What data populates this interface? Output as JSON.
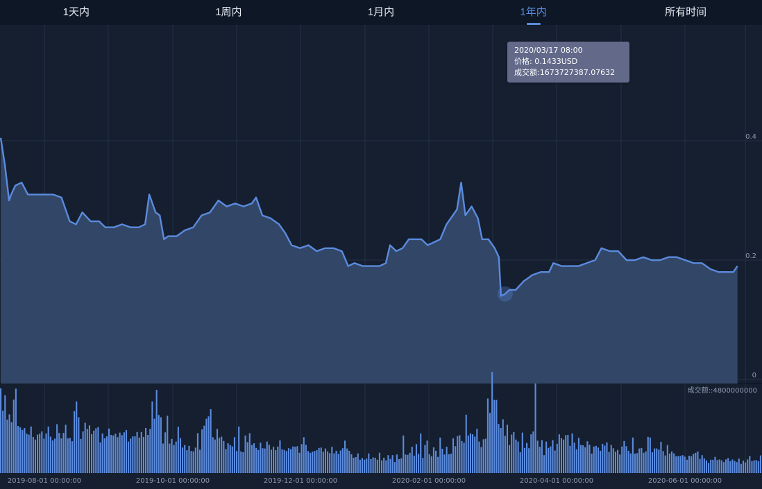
{
  "tabs": [
    {
      "label": "1天内",
      "active": false
    },
    {
      "label": "1周内",
      "active": false
    },
    {
      "label": "1月内",
      "active": false
    },
    {
      "label": "1年内",
      "active": true
    },
    {
      "label": "所有时间",
      "active": false
    }
  ],
  "tooltip": {
    "time": "2020/03/17 08:00",
    "price": "价格: 0.1433USD",
    "volume": "成交额:1673727387.07632"
  },
  "colors": {
    "background": "#151f2f",
    "tab_bar": "#0d1726",
    "accent": "#5b8bde",
    "line": "#5b8bde",
    "area": "#34496a",
    "grid": "#243247",
    "axis_text": "#8d9ab0"
  },
  "chart_data": [
    {
      "type": "area",
      "title": "",
      "ylim": [
        0,
        0.5
      ],
      "y_ticks": [
        "0",
        "0.2",
        "0.4"
      ],
      "grid": true,
      "highlight": {
        "x": "2020-03-17",
        "y": 0.1433
      },
      "points": [
        [
          "2019-07-20",
          0.405
        ],
        [
          "2019-07-22",
          0.36
        ],
        [
          "2019-07-24",
          0.3
        ],
        [
          "2019-07-25",
          0.31
        ],
        [
          "2019-07-27",
          0.325
        ],
        [
          "2019-07-30",
          0.33
        ],
        [
          "2019-08-02",
          0.31
        ],
        [
          "2019-08-06",
          0.31
        ],
        [
          "2019-08-10",
          0.31
        ],
        [
          "2019-08-14",
          0.31
        ],
        [
          "2019-08-18",
          0.305
        ],
        [
          "2019-08-22",
          0.265
        ],
        [
          "2019-08-25",
          0.26
        ],
        [
          "2019-08-28",
          0.28
        ],
        [
          "2019-09-01",
          0.265
        ],
        [
          "2019-09-05",
          0.265
        ],
        [
          "2019-09-08",
          0.255
        ],
        [
          "2019-09-12",
          0.255
        ],
        [
          "2019-09-16",
          0.26
        ],
        [
          "2019-09-20",
          0.255
        ],
        [
          "2019-09-24",
          0.255
        ],
        [
          "2019-09-27",
          0.26
        ],
        [
          "2019-09-29",
          0.31
        ],
        [
          "2019-10-02",
          0.28
        ],
        [
          "2019-10-04",
          0.275
        ],
        [
          "2019-10-06",
          0.235
        ],
        [
          "2019-10-08",
          0.24
        ],
        [
          "2019-10-12",
          0.24
        ],
        [
          "2019-10-16",
          0.25
        ],
        [
          "2019-10-20",
          0.255
        ],
        [
          "2019-10-24",
          0.275
        ],
        [
          "2019-10-28",
          0.28
        ],
        [
          "2019-11-01",
          0.3
        ],
        [
          "2019-11-05",
          0.29
        ],
        [
          "2019-11-09",
          0.295
        ],
        [
          "2019-11-13",
          0.29
        ],
        [
          "2019-11-17",
          0.295
        ],
        [
          "2019-11-19",
          0.305
        ],
        [
          "2019-11-22",
          0.275
        ],
        [
          "2019-11-26",
          0.27
        ],
        [
          "2019-11-30",
          0.26
        ],
        [
          "2019-12-03",
          0.245
        ],
        [
          "2019-12-06",
          0.225
        ],
        [
          "2019-12-10",
          0.22
        ],
        [
          "2019-12-14",
          0.225
        ],
        [
          "2019-12-18",
          0.215
        ],
        [
          "2019-12-22",
          0.22
        ],
        [
          "2019-12-26",
          0.22
        ],
        [
          "2019-12-30",
          0.215
        ],
        [
          "2020-01-02",
          0.19
        ],
        [
          "2020-01-05",
          0.195
        ],
        [
          "2020-01-09",
          0.19
        ],
        [
          "2020-01-13",
          0.19
        ],
        [
          "2020-01-17",
          0.19
        ],
        [
          "2020-01-20",
          0.195
        ],
        [
          "2020-01-22",
          0.225
        ],
        [
          "2020-01-25",
          0.215
        ],
        [
          "2020-01-28",
          0.22
        ],
        [
          "2020-01-31",
          0.235
        ],
        [
          "2020-02-03",
          0.235
        ],
        [
          "2020-02-06",
          0.235
        ],
        [
          "2020-02-09",
          0.225
        ],
        [
          "2020-02-12",
          0.23
        ],
        [
          "2020-02-15",
          0.235
        ],
        [
          "2020-02-18",
          0.26
        ],
        [
          "2020-02-21",
          0.275
        ],
        [
          "2020-02-23",
          0.285
        ],
        [
          "2020-02-25",
          0.33
        ],
        [
          "2020-02-27",
          0.275
        ],
        [
          "2020-03-01",
          0.29
        ],
        [
          "2020-03-04",
          0.27
        ],
        [
          "2020-03-06",
          0.235
        ],
        [
          "2020-03-09",
          0.235
        ],
        [
          "2020-03-12",
          0.22
        ],
        [
          "2020-03-14",
          0.205
        ],
        [
          "2020-03-15",
          0.14
        ],
        [
          "2020-03-17",
          0.1433
        ],
        [
          "2020-03-19",
          0.15
        ],
        [
          "2020-03-22",
          0.15
        ],
        [
          "2020-03-26",
          0.165
        ],
        [
          "2020-03-30",
          0.175
        ],
        [
          "2020-04-03",
          0.18
        ],
        [
          "2020-04-07",
          0.18
        ],
        [
          "2020-04-09",
          0.195
        ],
        [
          "2020-04-13",
          0.19
        ],
        [
          "2020-04-17",
          0.19
        ],
        [
          "2020-04-21",
          0.19
        ],
        [
          "2020-04-25",
          0.195
        ],
        [
          "2020-04-29",
          0.2
        ],
        [
          "2020-05-02",
          0.22
        ],
        [
          "2020-05-06",
          0.215
        ],
        [
          "2020-05-10",
          0.215
        ],
        [
          "2020-05-14",
          0.2
        ],
        [
          "2020-05-18",
          0.2
        ],
        [
          "2020-05-22",
          0.205
        ],
        [
          "2020-05-26",
          0.2
        ],
        [
          "2020-05-30",
          0.2
        ],
        [
          "2020-06-03",
          0.205
        ],
        [
          "2020-06-07",
          0.205
        ],
        [
          "2020-06-11",
          0.2
        ],
        [
          "2020-06-15",
          0.195
        ],
        [
          "2020-06-19",
          0.195
        ],
        [
          "2020-06-23",
          0.185
        ],
        [
          "2020-06-27",
          0.18
        ],
        [
          "2020-07-01",
          0.18
        ],
        [
          "2020-07-04",
          0.18
        ],
        [
          "2020-07-06",
          0.19
        ]
      ]
    },
    {
      "type": "bar",
      "title": "成交额::4800000000",
      "ylim": [
        0,
        4800000000
      ],
      "x_labels": [
        "2019-08-01 00:00:00",
        "2019-10-01 00:00:00",
        "2019-12-01 00:00:00",
        "2020-02-01 00:00:00",
        "2020-04-01 00:00:00",
        "2020-06-01 00:00:00"
      ],
      "values": [
        2930000000,
        2160000000,
        2690000000,
        1850000000,
        2030000000,
        1760000000,
        2540000000,
        2920000000,
        1630000000,
        1580000000,
        1490000000,
        1560000000,
        1360000000,
        1330000000,
        1610000000,
        1250000000,
        1160000000,
        1330000000,
        1360000000,
        1440000000,
        1190000000,
        1370000000,
        1610000000,
        1260000000,
        1130000000,
        1190000000,
        1690000000,
        1390000000,
        1200000000,
        1390000000,
        1670000000,
        1200000000,
        1220000000,
        1100000000,
        2140000000,
        2480000000,
        1930000000,
        1180000000,
        1440000000,
        1740000000,
        1530000000,
        1650000000,
        1350000000,
        1470000000,
        1550000000,
        1590000000,
        1060000000,
        1370000000,
        1200000000,
        1270000000,
        1540000000,
        1320000000,
        1300000000,
        1360000000,
        1240000000,
        1400000000,
        1310000000,
        1410000000,
        1490000000,
        1090000000,
        1190000000,
        1270000000,
        1270000000,
        1420000000,
        1230000000,
        1420000000,
        1250000000,
        1560000000,
        1320000000,
        1530000000,
        2480000000,
        1880000000,
        2880000000,
        2010000000,
        1930000000,
        1020000000,
        1410000000,
        1980000000,
        1020000000,
        1180000000,
        970000000,
        1090000000,
        1600000000,
        1210000000,
        880000000,
        970000000,
        790000000,
        940000000,
        760000000,
        750000000,
        880000000,
        1380000000,
        810000000,
        1510000000,
        1640000000,
        1880000000,
        1960000000,
        2210000000,
        1240000000,
        1160000000,
        1530000000,
        1220000000,
        1260000000,
        1110000000,
        830000000,
        1030000000,
        970000000,
        920000000,
        1240000000,
        760000000,
        1610000000,
        750000000,
        720000000,
        1300000000,
        1070000000,
        1380000000,
        970000000,
        1030000000,
        870000000,
        800000000,
        1050000000,
        860000000,
        850000000,
        1090000000,
        980000000,
        810000000,
        910000000,
        790000000,
        920000000,
        1130000000,
        820000000,
        800000000,
        760000000,
        860000000,
        830000000,
        920000000,
        910000000,
        930000000,
        700000000,
        1000000000,
        1240000000,
        980000000,
        760000000,
        700000000,
        740000000,
        760000000,
        790000000,
        870000000,
        880000000,
        740000000,
        850000000,
        750000000,
        690000000,
        910000000,
        680000000,
        770000000,
        660000000,
        780000000,
        860000000,
        1120000000,
        850000000,
        770000000,
        650000000,
        530000000,
        550000000,
        680000000,
        460000000,
        520000000,
        460000000,
        500000000,
        680000000,
        480000000,
        540000000,
        530000000,
        460000000,
        700000000,
        440000000,
        530000000,
        440000000,
        620000000,
        490000000,
        620000000,
        380000000,
        640000000,
        480000000,
        510000000,
        1300000000,
        640000000,
        630000000,
        700000000,
        910000000,
        600000000,
        1000000000,
        660000000,
        1370000000,
        520000000,
        970000000,
        1120000000,
        650000000,
        580000000,
        890000000,
        770000000,
        560000000,
        1230000000,
        840000000,
        640000000,
        910000000,
        650000000,
        670000000,
        1200000000,
        930000000,
        1280000000,
        1310000000,
        1110000000,
        1050000000,
        2020000000,
        1300000000,
        1370000000,
        1340000000,
        1260000000,
        1530000000,
        1090000000,
        900000000,
        1170000000,
        1190000000,
        2580000000,
        2080000000,
        3500000000,
        2530000000,
        2530000000,
        1700000000,
        1560000000,
        1860000000,
        1290000000,
        1670000000,
        970000000,
        1330000000,
        1420000000,
        1160000000,
        1090000000,
        720000000,
        1400000000,
        870000000,
        1040000000,
        860000000,
        1340000000,
        1440000000,
        3100000000,
        1120000000,
        910000000,
        1140000000,
        620000000,
        1090000000,
        870000000,
        920000000,
        1140000000,
        780000000,
        1010000000,
        1340000000,
        1210000000,
        1160000000,
        1310000000,
        1320000000,
        940000000,
        1370000000,
        1050000000,
        820000000,
        1220000000,
        970000000,
        960000000,
        890000000,
        1100000000,
        980000000,
        670000000,
        920000000,
        940000000,
        880000000,
        770000000,
        1010000000,
        950000000,
        1060000000,
        730000000,
        970000000,
        860000000,
        740000000,
        800000000,
        640000000,
        920000000,
        1110000000,
        930000000,
        770000000,
        680000000,
        1230000000,
        670000000,
        690000000,
        850000000,
        870000000,
        700000000,
        750000000,
        1250000000,
        1230000000,
        720000000,
        850000000,
        850000000,
        810000000,
        1080000000,
        760000000,
        610000000,
        970000000,
        680000000,
        750000000,
        680000000,
        580000000,
        590000000,
        590000000,
        620000000,
        570000000,
        460000000,
        600000000,
        580000000,
        660000000,
        700000000,
        750000000,
        490000000,
        620000000,
        510000000,
        440000000,
        350000000,
        460000000,
        460000000,
        560000000,
        450000000,
        470000000,
        440000000,
        380000000,
        470000000,
        520000000,
        410000000,
        470000000,
        420000000,
        380000000,
        500000000,
        320000000,
        430000000,
        370000000,
        470000000,
        590000000,
        410000000,
        440000000,
        450000000,
        410000000,
        610000000
      ]
    }
  ]
}
